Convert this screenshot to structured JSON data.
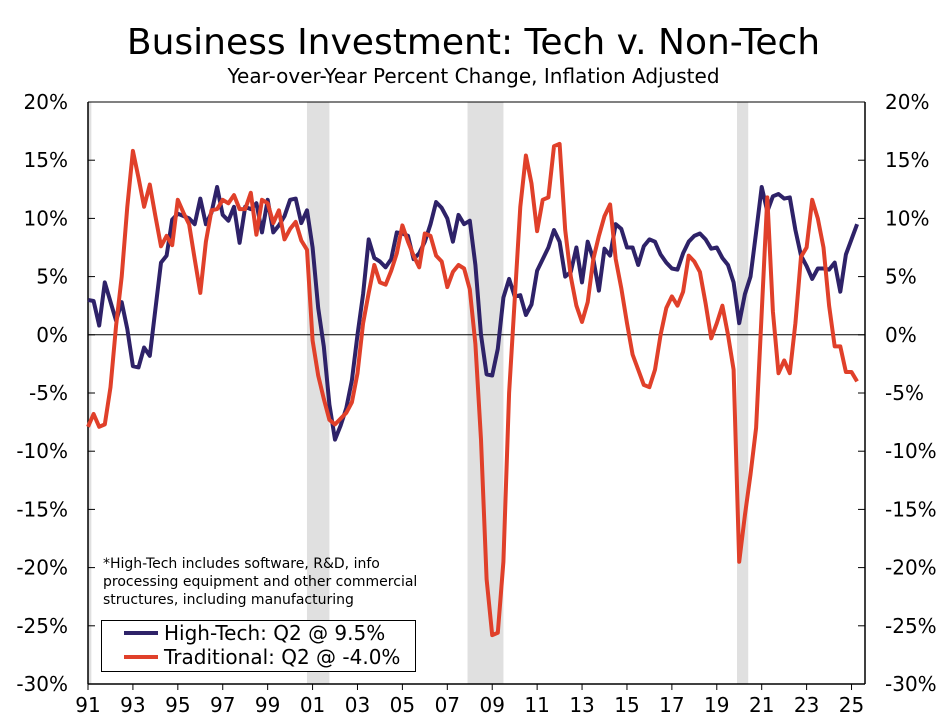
{
  "chart_data": {
    "type": "line",
    "title": "Business Investment: Tech v. Non-Tech",
    "subtitle": "Year-over-Year Percent Change, Inflation Adjusted",
    "xlim": [
      1991,
      2025.6
    ],
    "ylim": [
      -30,
      20
    ],
    "y_ticks": [
      "20%",
      "15%",
      "10%",
      "5%",
      "0%",
      "-5%",
      "-10%",
      "-15%",
      "-20%",
      "-25%",
      "-30%"
    ],
    "y_tick_values": [
      20,
      15,
      10,
      5,
      0,
      -5,
      -10,
      -15,
      -20,
      -25,
      -30
    ],
    "x_ticks": [
      "91",
      "93",
      "95",
      "97",
      "99",
      "01",
      "03",
      "05",
      "07",
      "09",
      "11",
      "13",
      "15",
      "17",
      "19",
      "21",
      "23",
      "25"
    ],
    "x_tick_values": [
      1991,
      1993,
      1995,
      1997,
      1999,
      2001,
      2003,
      2005,
      2007,
      2009,
      2011,
      2013,
      2015,
      2017,
      2019,
      2021,
      2023,
      2025
    ],
    "recessions": [
      [
        1990.6,
        1991.15
      ],
      [
        2000.75,
        2001.75
      ],
      [
        2007.9,
        2009.5
      ],
      [
        2019.9,
        2020.4
      ]
    ],
    "recession_color": "#e0e0e0",
    "note": [
      "*High-Tech includes software, R&D, info",
      "processing equipment and other commercial",
      "structures, including manufacturing"
    ],
    "series": [
      {
        "name": "High-Tech: Q2 @ 9.5%",
        "color": "#2e2268",
        "points": [
          [
            1991,
            3.0
          ],
          [
            1991.25,
            2.9
          ],
          [
            1991.5,
            0.8
          ],
          [
            1991.75,
            4.5
          ],
          [
            1992.25,
            1.2
          ],
          [
            1992.5,
            2.8
          ],
          [
            1992.75,
            0.5
          ],
          [
            1993,
            -2.7
          ],
          [
            1993.25,
            -2.8
          ],
          [
            1993.5,
            -1.1
          ],
          [
            1993.75,
            -1.8
          ],
          [
            1994.25,
            6.2
          ],
          [
            1994.5,
            6.8
          ],
          [
            1994.75,
            9.9
          ],
          [
            1995,
            10.4
          ],
          [
            1995.5,
            10.0
          ],
          [
            1995.75,
            9.5
          ],
          [
            1996,
            11.7
          ],
          [
            1996.25,
            9.5
          ],
          [
            1996.5,
            10.5
          ],
          [
            1996.75,
            12.7
          ],
          [
            1997,
            10.3
          ],
          [
            1997.25,
            9.8
          ],
          [
            1997.5,
            11.0
          ],
          [
            1997.75,
            7.9
          ],
          [
            1998,
            11.0
          ],
          [
            1998.25,
            10.8
          ],
          [
            1998.5,
            11.3
          ],
          [
            1998.75,
            8.8
          ],
          [
            1999,
            11.6
          ],
          [
            1999.25,
            8.8
          ],
          [
            1999.5,
            9.4
          ],
          [
            1999.75,
            10.2
          ],
          [
            2000,
            11.6
          ],
          [
            2000.25,
            11.7
          ],
          [
            2000.5,
            9.6
          ],
          [
            2000.75,
            10.7
          ],
          [
            2001,
            7.5
          ],
          [
            2001.25,
            2.3
          ],
          [
            2001.5,
            -1.0
          ],
          [
            2001.75,
            -6.0
          ],
          [
            2002,
            -9.0
          ],
          [
            2002.25,
            -7.8
          ],
          [
            2002.5,
            -6.3
          ],
          [
            2002.75,
            -3.9
          ],
          [
            2003,
            0.0
          ],
          [
            2003.25,
            3.5
          ],
          [
            2003.5,
            8.2
          ],
          [
            2003.75,
            6.6
          ],
          [
            2004,
            6.3
          ],
          [
            2004.25,
            5.8
          ],
          [
            2004.5,
            6.5
          ],
          [
            2004.75,
            8.8
          ],
          [
            2005,
            8.7
          ],
          [
            2005.25,
            8.5
          ],
          [
            2005.5,
            6.5
          ],
          [
            2005.75,
            7.0
          ],
          [
            2006,
            8.0
          ],
          [
            2006.25,
            9.5
          ],
          [
            2006.5,
            11.4
          ],
          [
            2006.75,
            10.9
          ],
          [
            2007,
            10.0
          ],
          [
            2007.25,
            8.0
          ],
          [
            2007.5,
            10.3
          ],
          [
            2007.75,
            9.5
          ],
          [
            2008,
            9.8
          ],
          [
            2008.25,
            6.0
          ],
          [
            2008.5,
            0.0
          ],
          [
            2008.75,
            -3.4
          ],
          [
            2009,
            -3.5
          ],
          [
            2009.25,
            -1.2
          ],
          [
            2009.5,
            3.2
          ],
          [
            2009.75,
            4.8
          ],
          [
            2010,
            3.3
          ],
          [
            2010.25,
            3.4
          ],
          [
            2010.5,
            1.7
          ],
          [
            2010.75,
            2.6
          ],
          [
            2011,
            5.5
          ],
          [
            2011.5,
            7.5
          ],
          [
            2011.75,
            9.0
          ],
          [
            2012,
            8.0
          ],
          [
            2012.25,
            5.0
          ],
          [
            2012.5,
            5.4
          ],
          [
            2012.75,
            7.5
          ],
          [
            2013,
            4.5
          ],
          [
            2013.25,
            8.0
          ],
          [
            2013.5,
            6.5
          ],
          [
            2013.75,
            3.8
          ],
          [
            2014,
            7.4
          ],
          [
            2014.25,
            6.8
          ],
          [
            2014.5,
            9.5
          ],
          [
            2014.75,
            9.1
          ],
          [
            2015,
            7.5
          ],
          [
            2015.25,
            7.5
          ],
          [
            2015.5,
            6.0
          ],
          [
            2015.75,
            7.6
          ],
          [
            2016,
            8.2
          ],
          [
            2016.25,
            8.0
          ],
          [
            2016.5,
            6.9
          ],
          [
            2016.75,
            6.2
          ],
          [
            2017,
            5.7
          ],
          [
            2017.25,
            5.6
          ],
          [
            2017.5,
            7.0
          ],
          [
            2017.75,
            8.0
          ],
          [
            2018,
            8.5
          ],
          [
            2018.25,
            8.7
          ],
          [
            2018.5,
            8.2
          ],
          [
            2018.75,
            7.4
          ],
          [
            2019,
            7.5
          ],
          [
            2019.25,
            6.6
          ],
          [
            2019.5,
            6.0
          ],
          [
            2019.75,
            4.5
          ],
          [
            2020,
            1.0
          ],
          [
            2020.25,
            3.5
          ],
          [
            2020.5,
            5.0
          ],
          [
            2020.75,
            8.8
          ],
          [
            2021,
            12.7
          ],
          [
            2021.25,
            10.6
          ],
          [
            2021.5,
            11.9
          ],
          [
            2021.75,
            12.1
          ],
          [
            2022,
            11.7
          ],
          [
            2022.25,
            11.8
          ],
          [
            2022.5,
            9.0
          ],
          [
            2022.75,
            6.8
          ],
          [
            2023,
            5.9
          ],
          [
            2023.25,
            4.8
          ],
          [
            2023.5,
            5.7
          ],
          [
            2023.75,
            5.7
          ],
          [
            2024,
            5.6
          ],
          [
            2024.25,
            6.2
          ],
          [
            2024.5,
            3.7
          ],
          [
            2024.75,
            6.9
          ],
          [
            2025.25,
            9.5
          ]
        ]
      },
      {
        "name": "Traditional: Q2 @ -4.0%",
        "color": "#e0402a",
        "points": [
          [
            1991,
            -7.9
          ],
          [
            1991.25,
            -6.8
          ],
          [
            1991.5,
            -7.9
          ],
          [
            1991.75,
            -7.7
          ],
          [
            1992,
            -4.5
          ],
          [
            1992.25,
            0.8
          ],
          [
            1992.5,
            5.0
          ],
          [
            1992.75,
            11.0
          ],
          [
            1993,
            15.8
          ],
          [
            1993.25,
            13.5
          ],
          [
            1993.5,
            11.0
          ],
          [
            1993.75,
            12.9
          ],
          [
            1994,
            10.2
          ],
          [
            1994.25,
            7.6
          ],
          [
            1994.5,
            8.5
          ],
          [
            1994.75,
            7.7
          ],
          [
            1995,
            11.6
          ],
          [
            1995.25,
            10.5
          ],
          [
            1995.5,
            9.5
          ],
          [
            1995.75,
            6.5
          ],
          [
            1996,
            3.6
          ],
          [
            1996.25,
            8.0
          ],
          [
            1996.5,
            10.7
          ],
          [
            1996.75,
            10.8
          ],
          [
            1997,
            11.6
          ],
          [
            1997.25,
            11.3
          ],
          [
            1997.5,
            12.0
          ],
          [
            1997.75,
            10.8
          ],
          [
            1998,
            10.8
          ],
          [
            1998.25,
            12.2
          ],
          [
            1998.5,
            8.6
          ],
          [
            1998.75,
            11.6
          ],
          [
            1999,
            11.3
          ],
          [
            1999.25,
            9.6
          ],
          [
            1999.5,
            10.7
          ],
          [
            1999.75,
            8.2
          ],
          [
            2000,
            9.1
          ],
          [
            2000.25,
            9.7
          ],
          [
            2000.5,
            8.1
          ],
          [
            2000.75,
            7.3
          ],
          [
            2001,
            -0.5
          ],
          [
            2001.25,
            -3.5
          ],
          [
            2001.5,
            -5.5
          ],
          [
            2001.75,
            -7.3
          ],
          [
            2002,
            -7.7
          ],
          [
            2002.25,
            -7.2
          ],
          [
            2002.5,
            -6.7
          ],
          [
            2002.75,
            -5.8
          ],
          [
            2003,
            -3.3
          ],
          [
            2003.25,
            1.0
          ],
          [
            2003.5,
            3.6
          ],
          [
            2003.75,
            6.0
          ],
          [
            2004,
            4.5
          ],
          [
            2004.25,
            4.3
          ],
          [
            2004.5,
            5.5
          ],
          [
            2004.75,
            7.0
          ],
          [
            2005,
            9.4
          ],
          [
            2005.25,
            8.0
          ],
          [
            2005.5,
            6.8
          ],
          [
            2005.75,
            5.8
          ],
          [
            2006,
            8.7
          ],
          [
            2006.25,
            8.5
          ],
          [
            2006.5,
            6.8
          ],
          [
            2006.75,
            6.3
          ],
          [
            2007,
            4.1
          ],
          [
            2007.25,
            5.4
          ],
          [
            2007.5,
            6.0
          ],
          [
            2007.75,
            5.7
          ],
          [
            2008,
            3.9
          ],
          [
            2008.25,
            -0.8
          ],
          [
            2008.5,
            -9.0
          ],
          [
            2008.75,
            -21.0
          ],
          [
            2009,
            -25.8
          ],
          [
            2009.25,
            -25.6
          ],
          [
            2009.5,
            -19.5
          ],
          [
            2009.75,
            -5.0
          ],
          [
            2010,
            3.0
          ],
          [
            2010.25,
            11.0
          ],
          [
            2010.5,
            15.4
          ],
          [
            2010.75,
            13.0
          ],
          [
            2011,
            8.9
          ],
          [
            2011.25,
            11.6
          ],
          [
            2011.5,
            11.8
          ],
          [
            2011.75,
            16.2
          ],
          [
            2012,
            16.4
          ],
          [
            2012.25,
            9.0
          ],
          [
            2012.5,
            5.0
          ],
          [
            2012.75,
            2.5
          ],
          [
            2013,
            1.1
          ],
          [
            2013.25,
            2.8
          ],
          [
            2013.5,
            6.5
          ],
          [
            2013.75,
            8.5
          ],
          [
            2014,
            10.2
          ],
          [
            2014.25,
            11.2
          ],
          [
            2014.5,
            6.5
          ],
          [
            2014.75,
            4.0
          ],
          [
            2015,
            1.0
          ],
          [
            2015.25,
            -1.7
          ],
          [
            2015.5,
            -3.0
          ],
          [
            2015.75,
            -4.3
          ],
          [
            2016,
            -4.5
          ],
          [
            2016.25,
            -3.0
          ],
          [
            2016.5,
            0.0
          ],
          [
            2016.75,
            2.3
          ],
          [
            2017,
            3.3
          ],
          [
            2017.25,
            2.5
          ],
          [
            2017.5,
            3.7
          ],
          [
            2017.75,
            6.8
          ],
          [
            2018,
            6.3
          ],
          [
            2018.25,
            5.4
          ],
          [
            2018.5,
            2.7
          ],
          [
            2018.75,
            -0.3
          ],
          [
            2019,
            1.0
          ],
          [
            2019.25,
            2.5
          ],
          [
            2019.5,
            0.0
          ],
          [
            2019.75,
            -3.0
          ],
          [
            2020,
            -19.5
          ],
          [
            2020.25,
            -15.5
          ],
          [
            2020.5,
            -12.0
          ],
          [
            2020.75,
            -8.0
          ],
          [
            2021.25,
            11.8
          ],
          [
            2021.5,
            2.0
          ],
          [
            2021.75,
            -3.3
          ],
          [
            2022,
            -2.2
          ],
          [
            2022.25,
            -3.3
          ],
          [
            2022.5,
            1.0
          ],
          [
            2022.75,
            6.7
          ],
          [
            2023,
            7.5
          ],
          [
            2023.25,
            11.6
          ],
          [
            2023.5,
            10.0
          ],
          [
            2023.75,
            7.5
          ],
          [
            2024,
            2.5
          ],
          [
            2024.25,
            -1.0
          ],
          [
            2024.5,
            -1.0
          ],
          [
            2024.75,
            -3.2
          ],
          [
            2025,
            -3.2
          ],
          [
            2025.25,
            -4.0
          ]
        ]
      }
    ]
  }
}
